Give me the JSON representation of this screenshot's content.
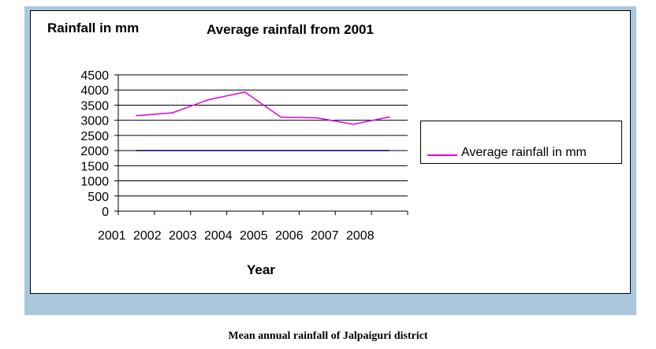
{
  "caption": "Mean annual rainfall of Jalpaiguri district",
  "chart_data": {
    "type": "line",
    "title": "Average rainfall from 2001",
    "ylabel": "Rainfall in mm",
    "xlabel": "Year",
    "categories": [
      "2001",
      "2002",
      "2003",
      "2004",
      "2005",
      "2006",
      "2007",
      "2008"
    ],
    "yticks": [
      0,
      500,
      1000,
      1500,
      2000,
      2500,
      3000,
      3500,
      4000,
      4500
    ],
    "ylim": [
      0,
      4500
    ],
    "grid": true,
    "legend_position": "right",
    "series": [
      {
        "name": "Average rainfall in mm",
        "color": "#e000e0",
        "values": [
          3150,
          3250,
          3680,
          3930,
          3100,
          3080,
          2870,
          3110
        ]
      }
    ],
    "reference_line": {
      "value": 2000,
      "color": "#000080"
    }
  },
  "colors": {
    "frame_background": "#a9c8de",
    "series_line": "#e000e0",
    "reference_line": "#000080"
  }
}
